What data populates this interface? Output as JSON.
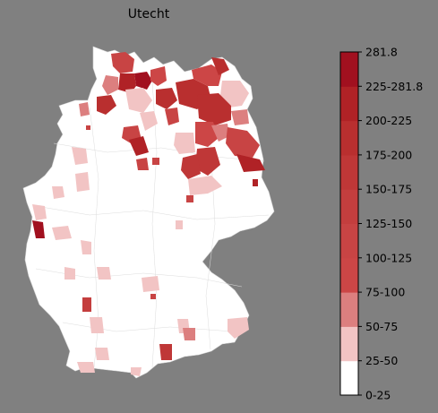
{
  "map": {
    "title": "Utecht",
    "region": "Germany (Landkreise)",
    "base_fill": "#ffffff",
    "background": "#808080",
    "highlighted_districts": [
      {
        "area": "Schleswig-Holstein north",
        "bin": "100-125"
      },
      {
        "area": "Kiel / Plön",
        "bin": "225-281.8"
      },
      {
        "area": "Ostholstein",
        "bin": "200-225"
      },
      {
        "area": "Nordwestmecklenburg",
        "bin": "175-200"
      },
      {
        "area": "Rostock / Güstrow",
        "bin": "175-200"
      },
      {
        "area": "Vorpommern",
        "bin": "75-100"
      },
      {
        "area": "Uckermark",
        "bin": "50-75"
      },
      {
        "area": "Ostfriesland",
        "bin": "175-200"
      },
      {
        "area": "Bremen area",
        "bin": "25-50"
      },
      {
        "area": "Stade / Harburg",
        "bin": "50-75"
      },
      {
        "area": "Prignitz / Ostprignitz",
        "bin": "175-200"
      },
      {
        "area": "Berlin surroundings",
        "bin": "75-100"
      },
      {
        "area": "Havelland",
        "bin": "75-100"
      },
      {
        "area": "Potsdam-Mittelmark",
        "bin": "150-175"
      },
      {
        "area": "Dahme-Spreewald",
        "bin": "150-175"
      },
      {
        "area": "Oder-Spree",
        "bin": "100-125"
      },
      {
        "area": "Spree-Neiße",
        "bin": "200-225"
      },
      {
        "area": "Hannover region",
        "bin": "100-125"
      },
      {
        "area": "Hildesheim",
        "bin": "200-225"
      },
      {
        "area": "Elbe-Elster",
        "bin": "25-50"
      },
      {
        "area": "Emsland",
        "bin": "25-50"
      },
      {
        "area": "Steinfurt",
        "bin": "25-50"
      },
      {
        "area": "Aachen",
        "bin": "225-281.8"
      },
      {
        "area": "Rhein-Sieg",
        "bin": "25-50"
      },
      {
        "area": "Saarland",
        "bin": "25-50"
      },
      {
        "area": "Karlsruhe",
        "bin": "125-150"
      },
      {
        "area": "Nürnberg",
        "bin": "25-50"
      },
      {
        "area": "Passau",
        "bin": "25-50"
      },
      {
        "area": "Rosenheim",
        "bin": "50-75"
      },
      {
        "area": "Landsberg",
        "bin": "150-175"
      },
      {
        "area": "Lindau",
        "bin": "25-50"
      }
    ]
  },
  "colorbar": {
    "max_label": "281.8",
    "bins": [
      {
        "label": "0-25",
        "color": "#ffffff"
      },
      {
        "label": "25-50",
        "color": "#f2c4c4"
      },
      {
        "label": "50-75",
        "color": "#dc7f7f"
      },
      {
        "label": "75-100",
        "color": "#cc4646"
      },
      {
        "label": "100-125",
        "color": "#c84444"
      },
      {
        "label": "125-150",
        "color": "#c43e3e"
      },
      {
        "label": "150-175",
        "color": "#bf3737"
      },
      {
        "label": "175-200",
        "color": "#b92f2f"
      },
      {
        "label": "200-225",
        "color": "#b02226"
      },
      {
        "label": "225-281.8",
        "color": "#a1101f"
      }
    ]
  }
}
